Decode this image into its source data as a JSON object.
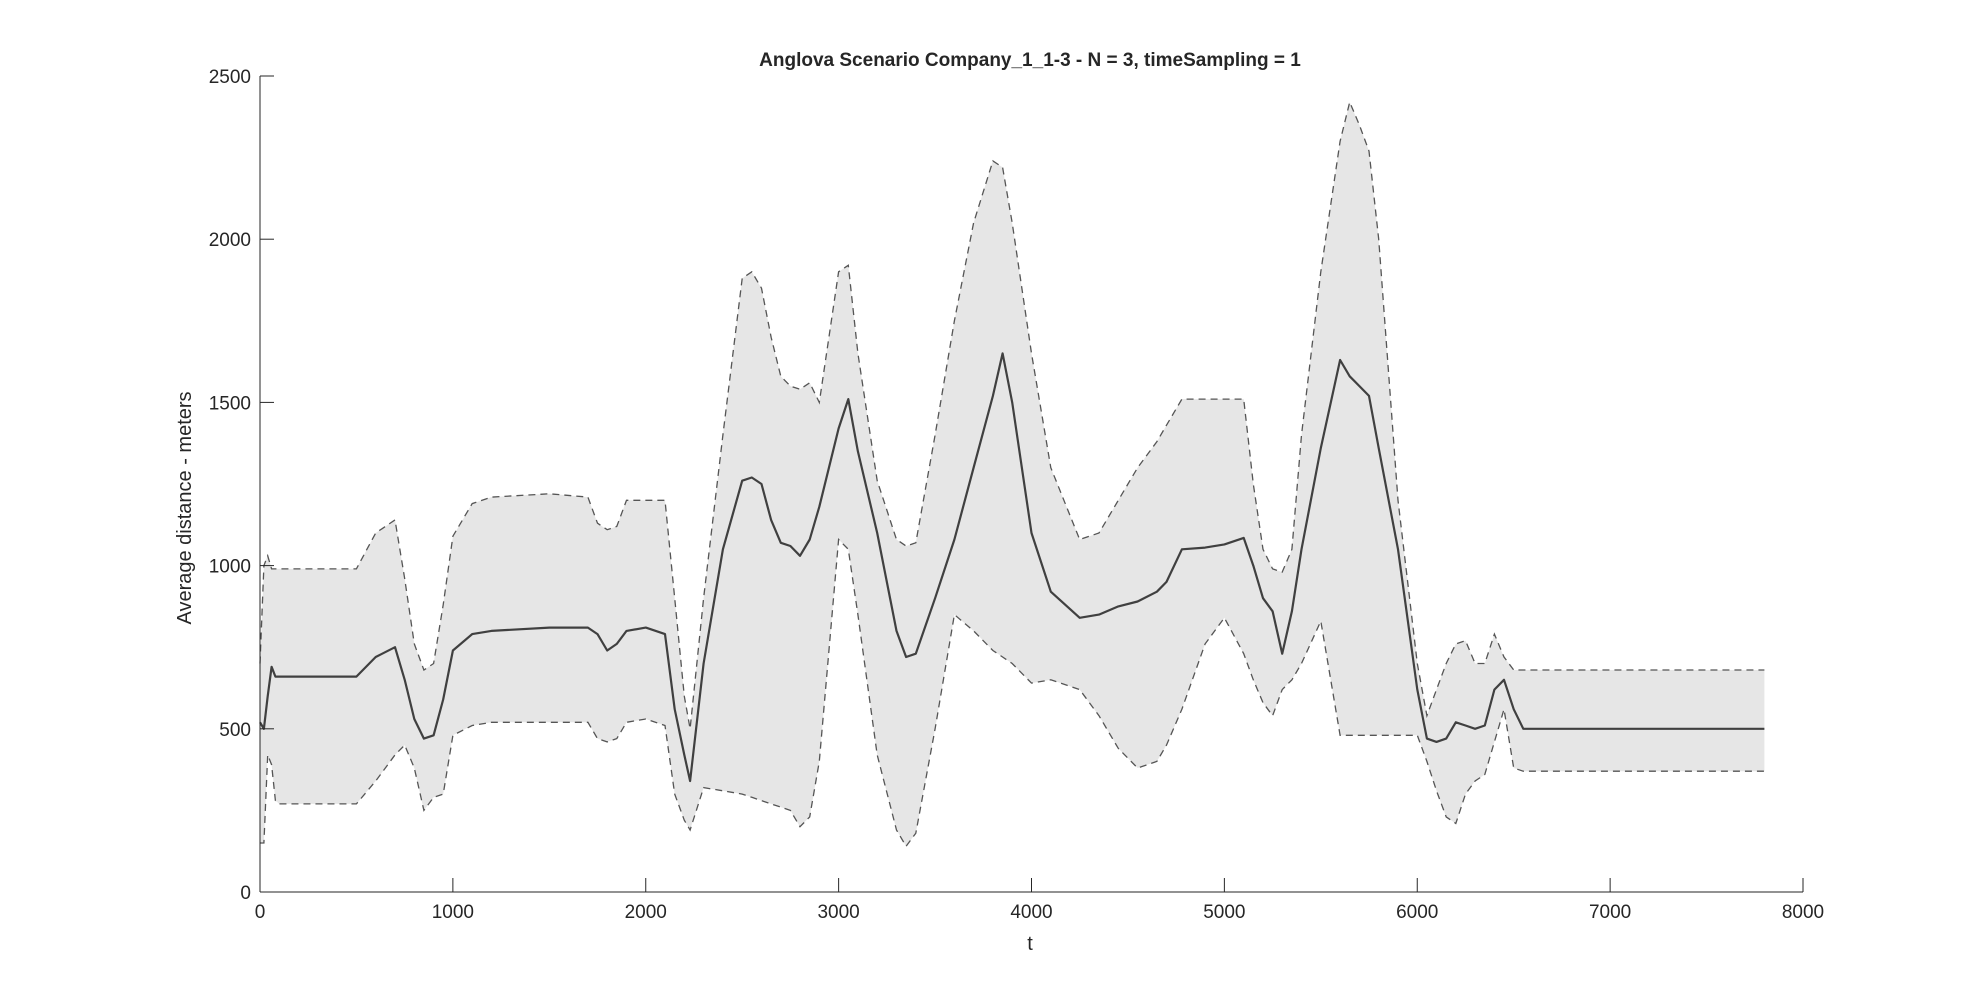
{
  "chart_data": {
    "type": "line",
    "title": "Anglova Scenario Company_1_1-3 - N = 3, timeSampling = 1",
    "xlabel": "t",
    "ylabel": "Average distance - meters",
    "xlim": [
      0,
      8000
    ],
    "ylim": [
      0,
      2500
    ],
    "xticks": [
      0,
      1000,
      2000,
      3000,
      4000,
      5000,
      6000,
      7000,
      8000
    ],
    "yticks": [
      0,
      500,
      1000,
      1500,
      2000,
      2500
    ],
    "grid": false,
    "legend": "none",
    "colors": {
      "mean": "#404040",
      "band": "#e6e6e6",
      "bounds": "#555555",
      "axis": "#262626"
    },
    "series": [
      {
        "role": "mean",
        "style": "solid",
        "x": [
          0,
          20,
          40,
          60,
          80,
          100,
          500,
          600,
          700,
          750,
          800,
          850,
          900,
          950,
          1000,
          1100,
          1200,
          1500,
          1700,
          1750,
          1800,
          1850,
          1900,
          2000,
          2100,
          2150,
          2200,
          2230,
          2300,
          2400,
          2500,
          2550,
          2600,
          2650,
          2700,
          2750,
          2800,
          2850,
          2900,
          3000,
          3050,
          3100,
          3200,
          3300,
          3350,
          3400,
          3500,
          3600,
          3700,
          3800,
          3850,
          3900,
          4000,
          4100,
          4250,
          4350,
          4450,
          4550,
          4650,
          4700,
          4780,
          4900,
          5000,
          5100,
          5150,
          5200,
          5250,
          5300,
          5350,
          5400,
          5500,
          5600,
          5650,
          5700,
          5750,
          5800,
          5900,
          6000,
          6050,
          6100,
          6150,
          6200,
          6250,
          6300,
          6350,
          6400,
          6450,
          6500,
          6550,
          7800
        ],
        "y": [
          520,
          500,
          600,
          690,
          660,
          660,
          660,
          720,
          750,
          650,
          530,
          470,
          480,
          590,
          740,
          790,
          800,
          810,
          810,
          790,
          740,
          760,
          800,
          810,
          790,
          560,
          420,
          340,
          700,
          1050,
          1260,
          1270,
          1250,
          1140,
          1070,
          1060,
          1030,
          1080,
          1180,
          1420,
          1510,
          1350,
          1100,
          800,
          720,
          730,
          900,
          1080,
          1300,
          1520,
          1650,
          1500,
          1100,
          920,
          840,
          850,
          875,
          890,
          920,
          950,
          1050,
          1055,
          1065,
          1085,
          1000,
          900,
          860,
          730,
          860,
          1050,
          1360,
          1630,
          1580,
          1550,
          1520,
          1360,
          1050,
          620,
          470,
          460,
          470,
          520,
          510,
          500,
          510,
          620,
          650,
          560,
          500,
          500
        ]
      },
      {
        "role": "upper",
        "style": "dashed",
        "x": [
          0,
          20,
          40,
          60,
          80,
          100,
          500,
          600,
          700,
          750,
          800,
          850,
          900,
          950,
          1000,
          1100,
          1200,
          1500,
          1700,
          1750,
          1800,
          1850,
          1900,
          2000,
          2100,
          2150,
          2200,
          2230,
          2300,
          2400,
          2500,
          2550,
          2600,
          2650,
          2700,
          2750,
          2800,
          2850,
          2900,
          3000,
          3050,
          3100,
          3200,
          3300,
          3350,
          3400,
          3500,
          3600,
          3700,
          3800,
          3850,
          3900,
          4000,
          4100,
          4250,
          4350,
          4450,
          4550,
          4650,
          4700,
          4780,
          4900,
          5000,
          5100,
          5150,
          5200,
          5250,
          5300,
          5350,
          5400,
          5500,
          5600,
          5650,
          5700,
          5750,
          5800,
          5900,
          6000,
          6050,
          6100,
          6150,
          6200,
          6250,
          6300,
          6350,
          6400,
          6450,
          6500,
          6550,
          7800
        ],
        "y": [
          700,
          1000,
          1030,
          990,
          990,
          990,
          990,
          1100,
          1140,
          960,
          760,
          680,
          700,
          880,
          1090,
          1190,
          1210,
          1220,
          1210,
          1130,
          1110,
          1120,
          1200,
          1200,
          1200,
          900,
          600,
          500,
          900,
          1400,
          1880,
          1900,
          1850,
          1700,
          1580,
          1550,
          1540,
          1560,
          1500,
          1900,
          1920,
          1650,
          1260,
          1080,
          1060,
          1070,
          1400,
          1750,
          2050,
          2240,
          2220,
          2050,
          1650,
          1300,
          1080,
          1100,
          1200,
          1300,
          1380,
          1430,
          1510,
          1510,
          1510,
          1510,
          1250,
          1050,
          990,
          980,
          1050,
          1400,
          1900,
          2300,
          2420,
          2350,
          2270,
          2000,
          1200,
          700,
          540,
          620,
          700,
          760,
          770,
          700,
          700,
          790,
          720,
          680,
          680,
          680
        ]
      },
      {
        "role": "lower",
        "style": "dashed",
        "x": [
          0,
          20,
          40,
          60,
          80,
          100,
          500,
          600,
          700,
          750,
          800,
          850,
          900,
          950,
          1000,
          1100,
          1200,
          1500,
          1700,
          1750,
          1800,
          1850,
          1900,
          2000,
          2100,
          2150,
          2200,
          2230,
          2300,
          2400,
          2500,
          2550,
          2600,
          2650,
          2700,
          2750,
          2800,
          2850,
          2900,
          3000,
          3050,
          3100,
          3200,
          3300,
          3350,
          3400,
          3500,
          3600,
          3700,
          3800,
          3850,
          3900,
          4000,
          4100,
          4250,
          4350,
          4450,
          4550,
          4650,
          4700,
          4780,
          4900,
          5000,
          5100,
          5150,
          5200,
          5250,
          5300,
          5350,
          5400,
          5500,
          5600,
          5650,
          5700,
          5750,
          5800,
          5900,
          6000,
          6050,
          6100,
          6150,
          6200,
          6250,
          6300,
          6350,
          6400,
          6450,
          6500,
          6550,
          7800
        ],
        "y": [
          150,
          150,
          420,
          390,
          280,
          270,
          270,
          340,
          420,
          450,
          380,
          250,
          290,
          300,
          480,
          510,
          520,
          520,
          520,
          470,
          460,
          470,
          520,
          530,
          510,
          300,
          220,
          190,
          320,
          310,
          300,
          290,
          280,
          270,
          260,
          250,
          200,
          230,
          400,
          1080,
          1050,
          850,
          420,
          190,
          140,
          180,
          500,
          850,
          800,
          740,
          720,
          700,
          640,
          650,
          620,
          540,
          440,
          380,
          400,
          450,
          560,
          760,
          840,
          730,
          650,
          580,
          540,
          620,
          650,
          700,
          830,
          480,
          480,
          480,
          480,
          480,
          480,
          480,
          400,
          310,
          230,
          210,
          300,
          340,
          360,
          460,
          560,
          380,
          370,
          370
        ]
      }
    ]
  }
}
